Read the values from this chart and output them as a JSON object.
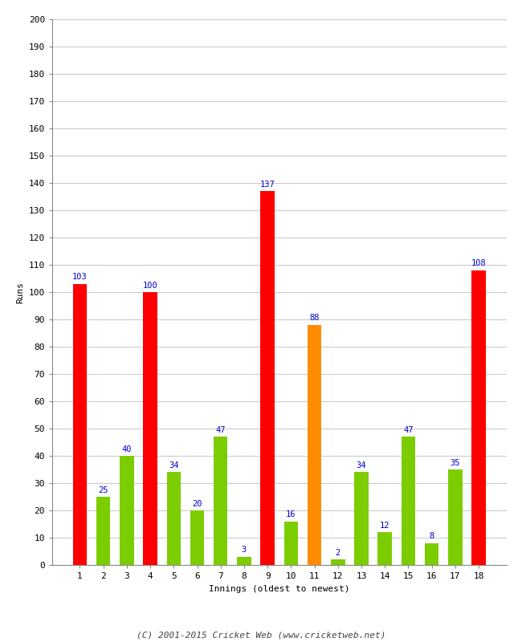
{
  "innings": [
    1,
    2,
    3,
    4,
    5,
    6,
    7,
    8,
    9,
    10,
    11,
    12,
    13,
    14,
    15,
    16,
    17,
    18
  ],
  "values": [
    103,
    25,
    40,
    100,
    34,
    20,
    47,
    3,
    137,
    16,
    88,
    2,
    34,
    12,
    47,
    8,
    35,
    108
  ],
  "colors": [
    "#ff0000",
    "#7ccd00",
    "#7ccd00",
    "#ff0000",
    "#7ccd00",
    "#7ccd00",
    "#7ccd00",
    "#7ccd00",
    "#ff0000",
    "#7ccd00",
    "#ff8c00",
    "#7ccd00",
    "#7ccd00",
    "#7ccd00",
    "#7ccd00",
    "#7ccd00",
    "#7ccd00",
    "#ff0000"
  ],
  "xlabel": "Innings (oldest to newest)",
  "ylabel": "Runs",
  "ylim": [
    0,
    200
  ],
  "yticks": [
    0,
    10,
    20,
    30,
    40,
    50,
    60,
    70,
    80,
    90,
    100,
    110,
    120,
    130,
    140,
    150,
    160,
    170,
    180,
    190,
    200
  ],
  "label_color": "#0000cc",
  "label_fontsize": 7.5,
  "axis_fontsize": 8,
  "tick_fontsize": 8,
  "footer": "(C) 2001-2015 Cricket Web (www.cricketweb.net)",
  "background_color": "#ffffff",
  "grid_color": "#cccccc",
  "bar_width": 0.6
}
